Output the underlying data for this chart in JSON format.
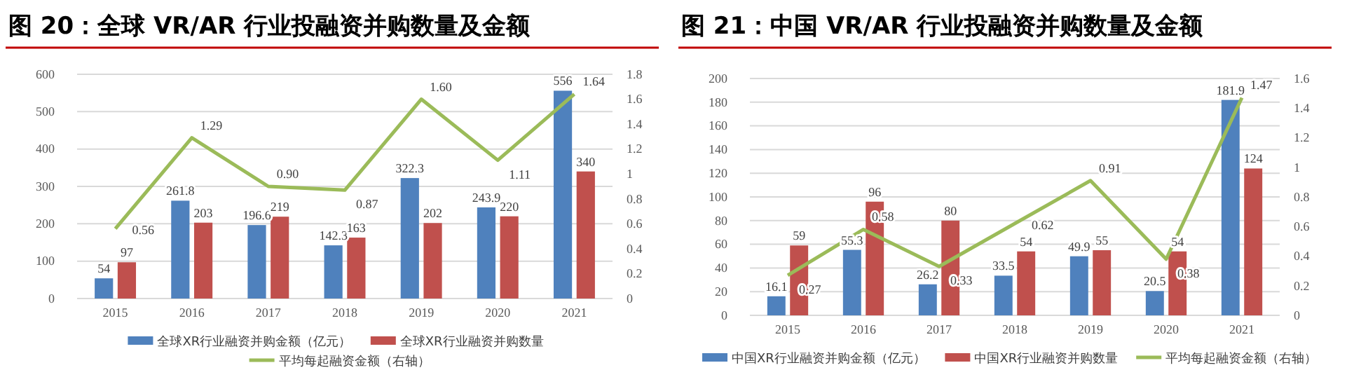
{
  "chart_data": [
    {
      "type": "bar",
      "title": "图 20：全球 VR/AR 行业投融资并购数量及金额",
      "categories": [
        "2015",
        "2016",
        "2017",
        "2018",
        "2019",
        "2020",
        "2021"
      ],
      "series": [
        {
          "name": "全球XR行业融资并购金额（亿元）",
          "color": "#4f81bd",
          "values": [
            54,
            261.8,
            196.6,
            142.3,
            322.3,
            243.9,
            556
          ],
          "value_labels": [
            "54",
            "261.8",
            "196.6",
            "142.3",
            "322.3",
            "243.9",
            "556"
          ]
        },
        {
          "name": "全球XR行业融资并购数量",
          "color": "#c0504d",
          "values": [
            97,
            203,
            219,
            163,
            202,
            220,
            340
          ],
          "value_labels": [
            "97",
            "203",
            "219",
            "163",
            "202",
            "220",
            "340"
          ]
        },
        {
          "name": "平均每起融资金额（右轴）",
          "type": "line",
          "axis": "y2",
          "color": "#9bbb59",
          "values": [
            0.56,
            1.29,
            0.9,
            0.87,
            1.6,
            1.11,
            1.64
          ],
          "value_labels": [
            "0.56",
            "1.29",
            "0.90",
            "0.87",
            "1.60",
            "1.11",
            "1.64"
          ]
        }
      ],
      "ylim": [
        0,
        600
      ],
      "yticks": [
        0,
        100,
        200,
        300,
        400,
        500,
        600
      ],
      "y2lim": [
        0,
        1.8
      ],
      "y2ticks": [
        {
          "value": 0,
          "label": "0"
        },
        {
          "value": 0.2,
          "label": "0.2"
        },
        {
          "value": 0.4,
          "label": "0.4"
        },
        {
          "value": 0.6,
          "label": "0.6"
        },
        {
          "value": 0.8,
          "label": "0.8"
        },
        {
          "value": 1,
          "label": "1"
        },
        {
          "value": 1.2,
          "label": "1.2"
        },
        {
          "value": 1.4,
          "label": "1.4"
        },
        {
          "value": 1.6,
          "label": "1.6"
        },
        {
          "value": 1.8,
          "label": "1.8"
        }
      ],
      "grid": "y",
      "legend": "bottom",
      "marker": "none"
    },
    {
      "type": "bar",
      "title": "图 21：中国 VR/AR 行业投融资并购数量及金额",
      "categories": [
        "2015",
        "2016",
        "2017",
        "2018",
        "2019",
        "2020",
        "2021"
      ],
      "series": [
        {
          "name": "中国XR行业融资并购金额（亿元）",
          "color": "#4f81bd",
          "values": [
            16.1,
            55.3,
            26.2,
            33.5,
            49.9,
            20.5,
            181.9
          ],
          "value_labels": [
            "16.1",
            "55.3",
            "26.2",
            "33.5",
            "49.9",
            "20.5",
            "181.9"
          ]
        },
        {
          "name": "中国XR行业融资并购数量",
          "color": "#c0504d",
          "values": [
            59,
            96,
            80,
            54,
            55,
            54,
            124
          ],
          "value_labels": [
            "59",
            "96",
            "80",
            "54",
            "55",
            "54",
            "124"
          ]
        },
        {
          "name": "平均每起融资金额（右轴）",
          "type": "line",
          "axis": "y2",
          "color": "#9bbb59",
          "values": [
            0.27,
            0.58,
            0.33,
            0.62,
            0.91,
            0.38,
            1.47
          ],
          "value_labels": [
            "0.27",
            "0.58",
            "0.33",
            "0.62",
            "0.91",
            "0.38",
            "1.47"
          ]
        }
      ],
      "ylim": [
        0,
        200
      ],
      "yticks": [
        0,
        20,
        40,
        60,
        80,
        100,
        120,
        140,
        160,
        180,
        200
      ],
      "y2lim": [
        0,
        1.6
      ],
      "y2ticks": [
        {
          "value": 0,
          "label": "0"
        },
        {
          "value": 0.2,
          "label": "0.2"
        },
        {
          "value": 0.4,
          "label": "0.4"
        },
        {
          "value": 0.6,
          "label": "0.6"
        },
        {
          "value": 0.8,
          "label": "0.8"
        },
        {
          "value": 1,
          "label": "1"
        },
        {
          "value": 1.2,
          "label": "1.2"
        },
        {
          "value": 1.4,
          "label": "1.4"
        },
        {
          "value": 1.6,
          "label": "1.6"
        }
      ],
      "grid": "y",
      "legend": "bottom",
      "marker": "none"
    }
  ]
}
